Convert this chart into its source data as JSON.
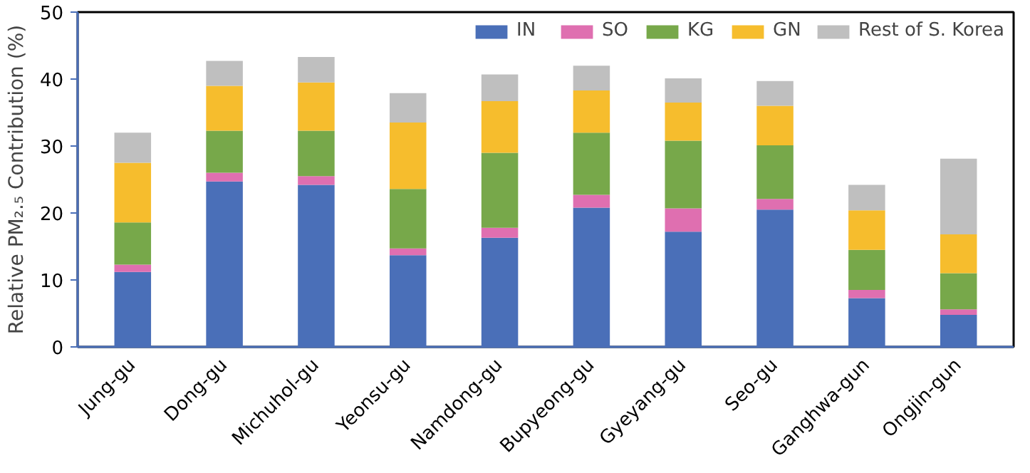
{
  "chart_data": {
    "type": "bar",
    "stacked": true,
    "ylabel": "Relative PM₂.₅ Contribution (%)",
    "categories": [
      "Jung-gu",
      "Dong-gu",
      "Michuhol-gu",
      "Yeonsu-gu",
      "Namdong-gu",
      "Bupyeong-gu",
      "Gyeyang-gu",
      "Seo-gu",
      "Ganghwa-gun",
      "Ongjin-gun"
    ],
    "series": [
      {
        "name": "IN",
        "color": "#4a6fb8",
        "values": [
          11.2,
          24.7,
          24.2,
          13.7,
          16.3,
          20.8,
          17.2,
          20.5,
          7.3,
          4.8
        ]
      },
      {
        "name": "SO",
        "color": "#df6fb0",
        "values": [
          1.1,
          1.3,
          1.3,
          1.0,
          1.5,
          1.9,
          3.5,
          1.6,
          1.2,
          0.8
        ]
      },
      {
        "name": "KG",
        "color": "#77a84a",
        "values": [
          6.3,
          6.3,
          6.8,
          8.9,
          11.2,
          9.3,
          10.1,
          8.0,
          6.0,
          5.4
        ]
      },
      {
        "name": "GN",
        "color": "#f6bd2d",
        "values": [
          8.9,
          6.7,
          7.2,
          9.9,
          7.7,
          6.3,
          5.7,
          5.9,
          5.9,
          5.8
        ]
      },
      {
        "name": "Rest of S. Korea",
        "color": "#bfbfbf",
        "values": [
          4.5,
          3.7,
          3.8,
          4.4,
          4.0,
          3.7,
          3.6,
          3.7,
          3.8,
          11.3
        ]
      }
    ],
    "ylim": [
      0,
      50
    ],
    "yticks": [
      0,
      10,
      20,
      30,
      40,
      50
    ],
    "grid": false,
    "legend": "top right"
  }
}
